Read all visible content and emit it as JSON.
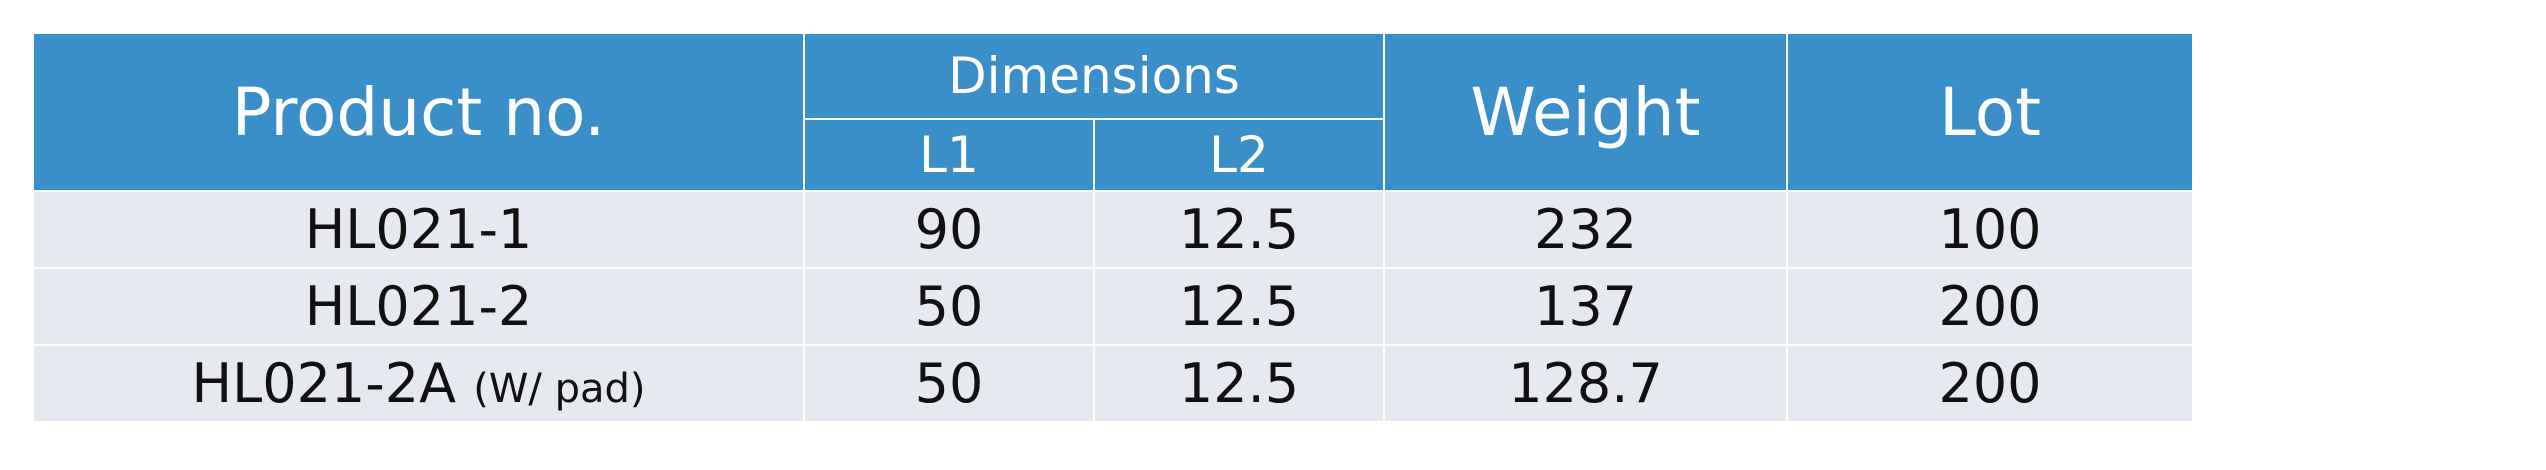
{
  "table": {
    "headers": {
      "product": "Product no.",
      "dimensions": "Dimensions",
      "l1": "L1",
      "l2": "L2",
      "weight": "Weight",
      "lot": "Lot"
    },
    "rows": [
      {
        "product": "HL021-1",
        "note": "",
        "l1": "90",
        "l2": "12.5",
        "weight": "232",
        "lot": "100"
      },
      {
        "product": "HL021-2",
        "note": "",
        "l1": "50",
        "l2": "12.5",
        "weight": "137",
        "lot": "200"
      },
      {
        "product": "HL021-2A",
        "note": "(W/ pad)",
        "l1": "50",
        "l2": "12.5",
        "weight": "128.7",
        "lot": "200"
      }
    ],
    "colors": {
      "header_bg": "#3a8fc9",
      "row_bg": "#e7e9f1"
    }
  }
}
